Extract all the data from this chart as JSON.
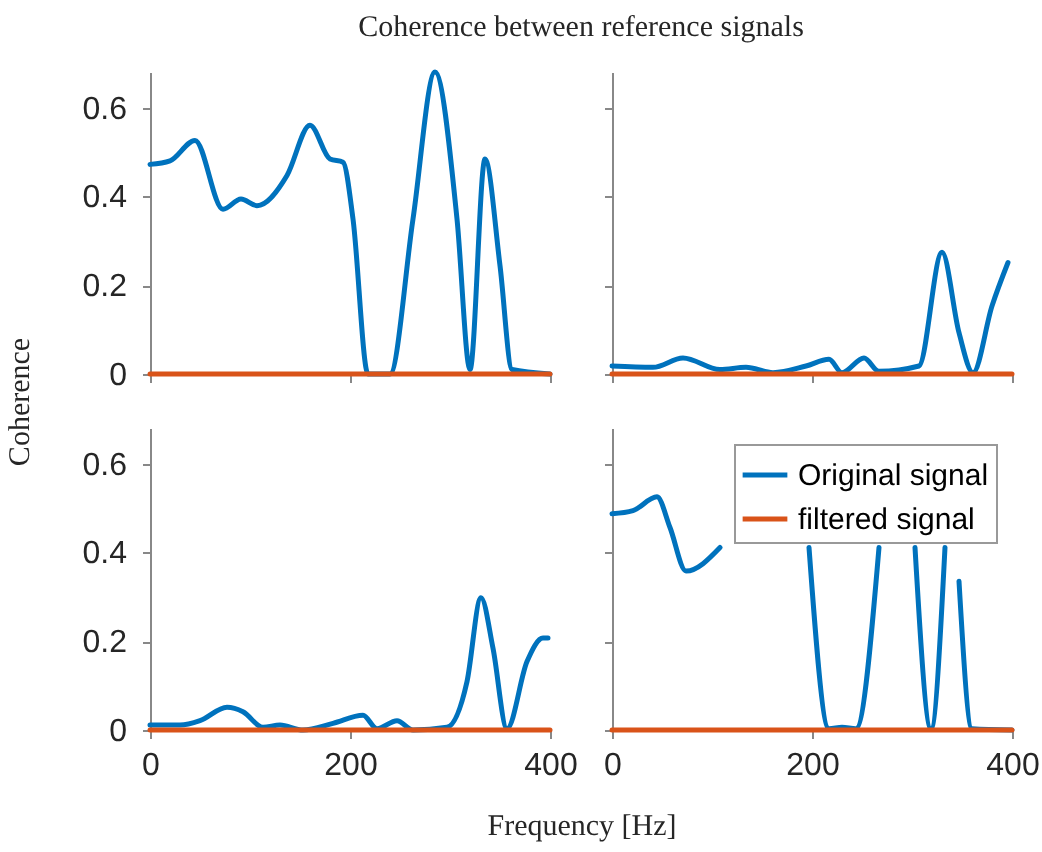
{
  "chart_data": [
    {
      "type": "line",
      "title": "Coherence between reference signals",
      "ylabel": "Coherence",
      "xlim": [
        0,
        400
      ],
      "xticks": [
        0,
        200,
        400
      ],
      "ylim": [
        0,
        0.68
      ],
      "yticks": [
        0,
        0.2,
        0.4,
        0.6
      ],
      "tick_labels": "y",
      "series": [
        {
          "color": "#0072bd",
          "x": [
            0,
            20,
            45,
            73,
            91,
            107,
            137,
            160,
            180,
            193,
            203,
            218,
            240,
            263,
            285,
            307,
            320,
            335,
            350,
            362,
            400
          ],
          "values": [
            0.472,
            0.48,
            0.526,
            0.371,
            0.394,
            0.379,
            0.447,
            0.56,
            0.484,
            0.477,
            0.349,
            0,
            0,
            0.349,
            0.68,
            0.349,
            0.01,
            0.484,
            0.244,
            0.01,
            0
          ]
        },
        {
          "color": "#d95319",
          "x": [
            0,
            400
          ],
          "values": [
            0,
            0
          ]
        }
      ]
    },
    {
      "type": "line",
      "xlim": [
        0,
        400
      ],
      "xticks": [
        0,
        200,
        400
      ],
      "ylim": [
        0,
        0.68
      ],
      "yticks": [
        0,
        0.2,
        0.4,
        0.6
      ],
      "tick_labels": false,
      "series": [
        {
          "color": "#0072bd",
          "x": [
            0,
            41,
            71,
            108,
            134,
            161,
            194,
            217,
            230,
            252,
            267,
            307,
            330,
            347,
            361,
            380,
            396
          ],
          "values": [
            0.018,
            0.015,
            0.036,
            0.01,
            0.015,
            0.003,
            0.018,
            0.033,
            0.003,
            0.036,
            0.006,
            0.018,
            0.274,
            0.093,
            0.003,
            0.153,
            0.251
          ]
        },
        {
          "color": "#d95319",
          "x": [
            0,
            400
          ],
          "values": [
            0,
            0
          ]
        }
      ]
    },
    {
      "type": "line",
      "xlabel": "Frequency [Hz]",
      "xlim": [
        0,
        400
      ],
      "xticks": [
        0,
        200,
        400
      ],
      "ylim": [
        0,
        0.68
      ],
      "yticks": [
        0,
        0.2,
        0.4,
        0.6
      ],
      "series": [
        {
          "color": "#0072bd",
          "x": [
            0,
            30,
            50,
            77,
            93,
            113,
            130,
            153,
            183,
            213,
            227,
            247,
            263,
            297,
            317,
            331,
            343,
            357,
            377,
            393,
            398
          ],
          "values": [
            0.011,
            0.011,
            0.021,
            0.051,
            0.041,
            0.006,
            0.011,
            0,
            0.015,
            0.033,
            0.003,
            0.021,
            0,
            0.006,
            0.109,
            0.298,
            0.184,
            0.003,
            0.154,
            0.207,
            0.207
          ]
        },
        {
          "color": "#d95319",
          "x": [
            0,
            400
          ],
          "values": [
            0,
            0
          ]
        }
      ]
    },
    {
      "type": "line",
      "xlim": [
        0,
        400
      ],
      "xticks": [
        0,
        200,
        400
      ],
      "ylim": [
        0,
        0.68
      ],
      "yticks": [
        0,
        0.2,
        0.4,
        0.6
      ],
      "tick_labels": "x",
      "legend": "top right",
      "series": [
        {
          "name": "Original signal",
          "color": "#0072bd",
          "x": [
            0,
            21,
            45,
            58,
            74,
            108,
            150,
            197,
            217,
            230,
            244,
            267,
            285,
            303,
            319,
            333,
            340,
            347,
            360,
            400
          ],
          "values": [
            0.487,
            0.494,
            0.525,
            0.456,
            0.358,
            0.411,
            null,
            0.411,
            0.003,
            0.006,
            0.003,
            0.411,
            null,
            0.411,
            0.003,
            0.411,
            null,
            0.335,
            0.003,
            0
          ]
        },
        {
          "name": "filtered signal",
          "color": "#d95319",
          "x": [
            0,
            400
          ],
          "values": [
            0,
            0
          ]
        }
      ]
    }
  ]
}
